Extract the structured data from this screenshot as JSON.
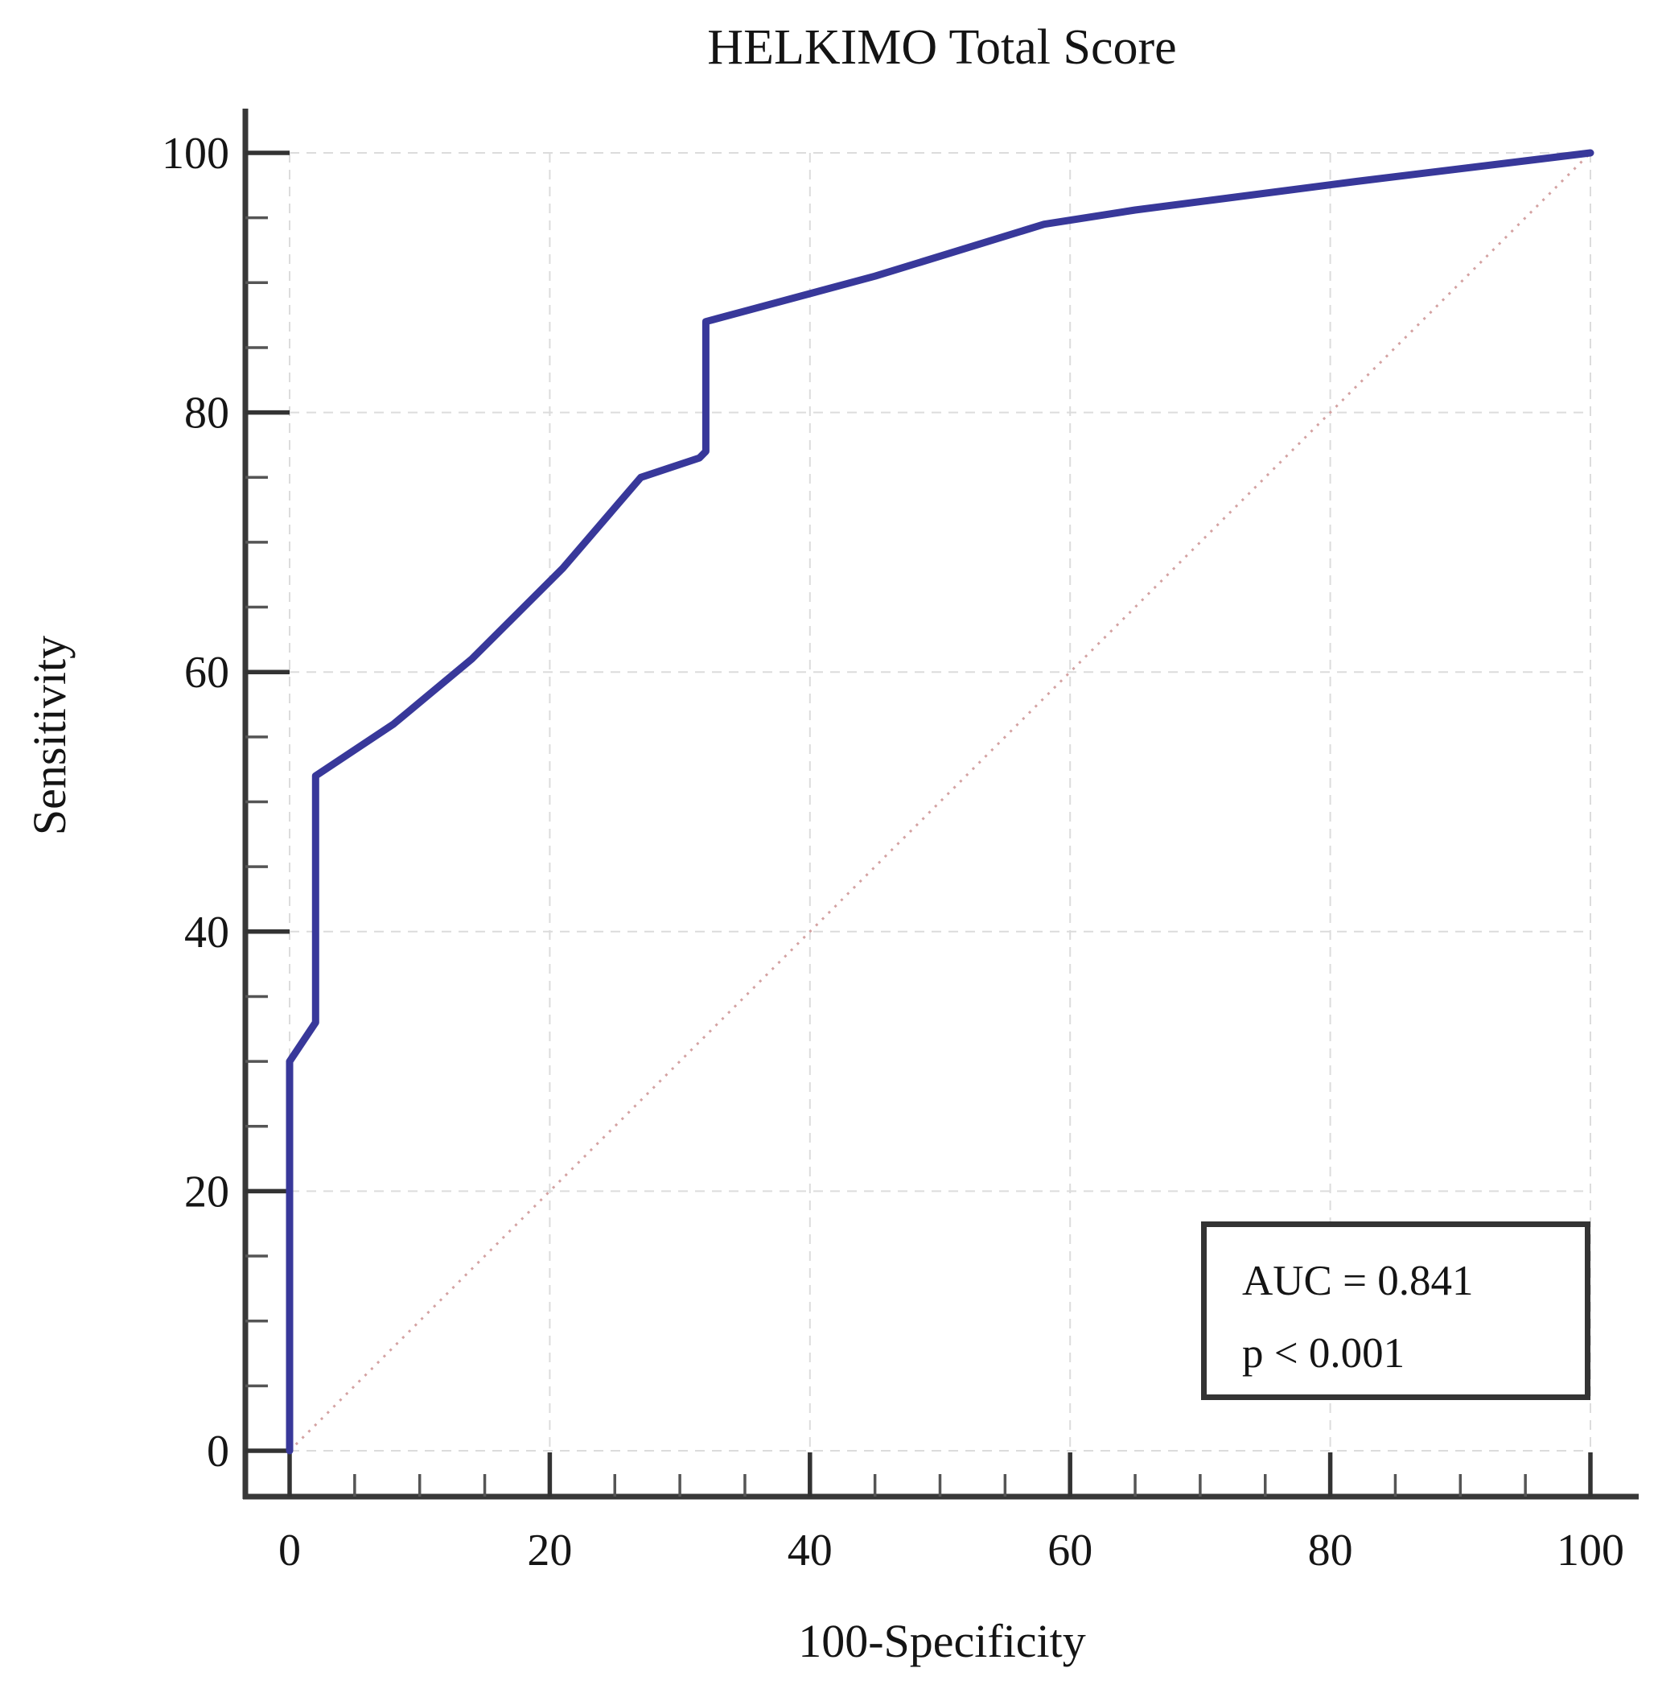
{
  "figure": {
    "title": "HELKIMO Total Score",
    "x_axis_label": "100-Specificity",
    "y_axis_label": "Sensitivity",
    "annotation": {
      "line1": "AUC = 0.841",
      "line2": "p < 0.001"
    }
  },
  "chart_data": {
    "type": "line",
    "title": "HELKIMO Total Score",
    "xlabel": "100-Specificity",
    "ylabel": "Sensitivity",
    "xlim": [
      0,
      100
    ],
    "ylim": [
      0,
      100
    ],
    "xticks": [
      0,
      20,
      40,
      60,
      80,
      100
    ],
    "yticks": [
      0,
      20,
      40,
      60,
      80,
      100
    ],
    "minor_tick_step": 5,
    "grid": true,
    "legend_position": "none",
    "annotations": [
      "AUC = 0.841",
      "p < 0.001"
    ],
    "series": [
      {
        "name": "ROC curve (HELKIMO Total Score)",
        "color": "#38389a",
        "style": "solid",
        "points": [
          [
            0,
            0
          ],
          [
            0,
            30
          ],
          [
            2,
            33
          ],
          [
            2,
            52
          ],
          [
            8,
            56
          ],
          [
            14,
            61
          ],
          [
            21,
            68
          ],
          [
            27,
            75
          ],
          [
            31.5,
            76.5
          ],
          [
            32,
            77
          ],
          [
            32,
            87
          ],
          [
            45,
            90.5
          ],
          [
            58,
            94.5
          ],
          [
            65,
            95.6
          ],
          [
            82,
            97.8
          ],
          [
            100,
            100
          ]
        ]
      },
      {
        "name": "reference diagonal",
        "color": "#d4a2a2",
        "style": "dotted",
        "points": [
          [
            0,
            0
          ],
          [
            100,
            100
          ]
        ]
      }
    ]
  },
  "colors": {
    "curve": "#38389a",
    "diagonal": "#d4a2a2",
    "gridline": "#dcdcdc",
    "axis": "#383838",
    "major_tick": "#333333",
    "minor_tick": "#555555",
    "text": "#151515"
  }
}
